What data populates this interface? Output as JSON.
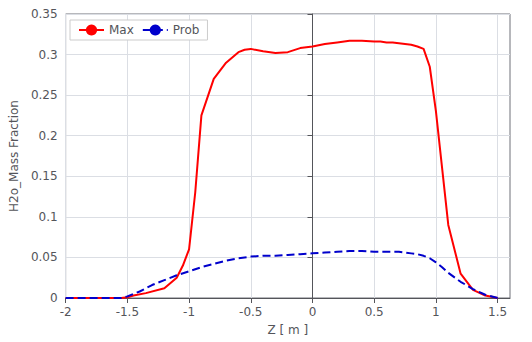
{
  "chart_data": {
    "type": "line",
    "xlabel": "Z [ m ]",
    "ylabel": "H2o_Mass Fraction",
    "xlim": [
      -2,
      1.6
    ],
    "ylim": [
      0,
      0.35
    ],
    "xticks": [
      -2,
      -1.5,
      -1,
      -0.5,
      0,
      0.5,
      1,
      1.5
    ],
    "yticks": [
      0,
      0.05,
      0.1,
      0.15,
      0.2,
      0.25,
      0.3,
      0.35
    ],
    "grid": true,
    "legend": "upper left",
    "series": [
      {
        "name": "Max",
        "color": "#ff0000",
        "line_style": "solid",
        "x": [
          -2.0,
          -1.55,
          -1.5,
          -1.45,
          -1.35,
          -1.2,
          -1.1,
          -1.05,
          -1.0,
          -0.95,
          -0.9,
          -0.8,
          -0.7,
          -0.6,
          -0.55,
          -0.5,
          -0.4,
          -0.3,
          -0.2,
          -0.1,
          0.0,
          0.1,
          0.2,
          0.3,
          0.4,
          0.5,
          0.55,
          0.6,
          0.65,
          0.7,
          0.75,
          0.8,
          0.85,
          0.9,
          0.95,
          1.0,
          1.05,
          1.1,
          1.2,
          1.3,
          1.4,
          1.5
        ],
        "values": [
          0.0,
          0.0,
          0.001,
          0.003,
          0.006,
          0.012,
          0.025,
          0.04,
          0.06,
          0.13,
          0.225,
          0.27,
          0.29,
          0.303,
          0.306,
          0.307,
          0.304,
          0.302,
          0.303,
          0.308,
          0.31,
          0.313,
          0.315,
          0.317,
          0.317,
          0.316,
          0.316,
          0.315,
          0.315,
          0.314,
          0.313,
          0.312,
          0.31,
          0.307,
          0.285,
          0.23,
          0.16,
          0.09,
          0.03,
          0.01,
          0.003,
          0.0
        ]
      },
      {
        "name": "Prob",
        "color": "#0000cc",
        "line_style": "dashed",
        "x": [
          -2.0,
          -1.55,
          -1.5,
          -1.45,
          -1.4,
          -1.35,
          -1.3,
          -1.2,
          -1.1,
          -1.0,
          -0.9,
          -0.8,
          -0.7,
          -0.6,
          -0.5,
          -0.4,
          -0.3,
          -0.2,
          -0.1,
          0.0,
          0.1,
          0.2,
          0.3,
          0.4,
          0.5,
          0.6,
          0.7,
          0.8,
          0.85,
          0.9,
          0.95,
          1.0,
          1.05,
          1.1,
          1.2,
          1.3,
          1.4,
          1.5
        ],
        "values": [
          0.0,
          0.0,
          0.002,
          0.005,
          0.008,
          0.012,
          0.016,
          0.022,
          0.028,
          0.033,
          0.038,
          0.042,
          0.046,
          0.049,
          0.051,
          0.052,
          0.052,
          0.053,
          0.054,
          0.055,
          0.056,
          0.057,
          0.058,
          0.058,
          0.057,
          0.057,
          0.057,
          0.055,
          0.054,
          0.052,
          0.049,
          0.044,
          0.038,
          0.031,
          0.02,
          0.011,
          0.004,
          0.0
        ]
      }
    ]
  }
}
